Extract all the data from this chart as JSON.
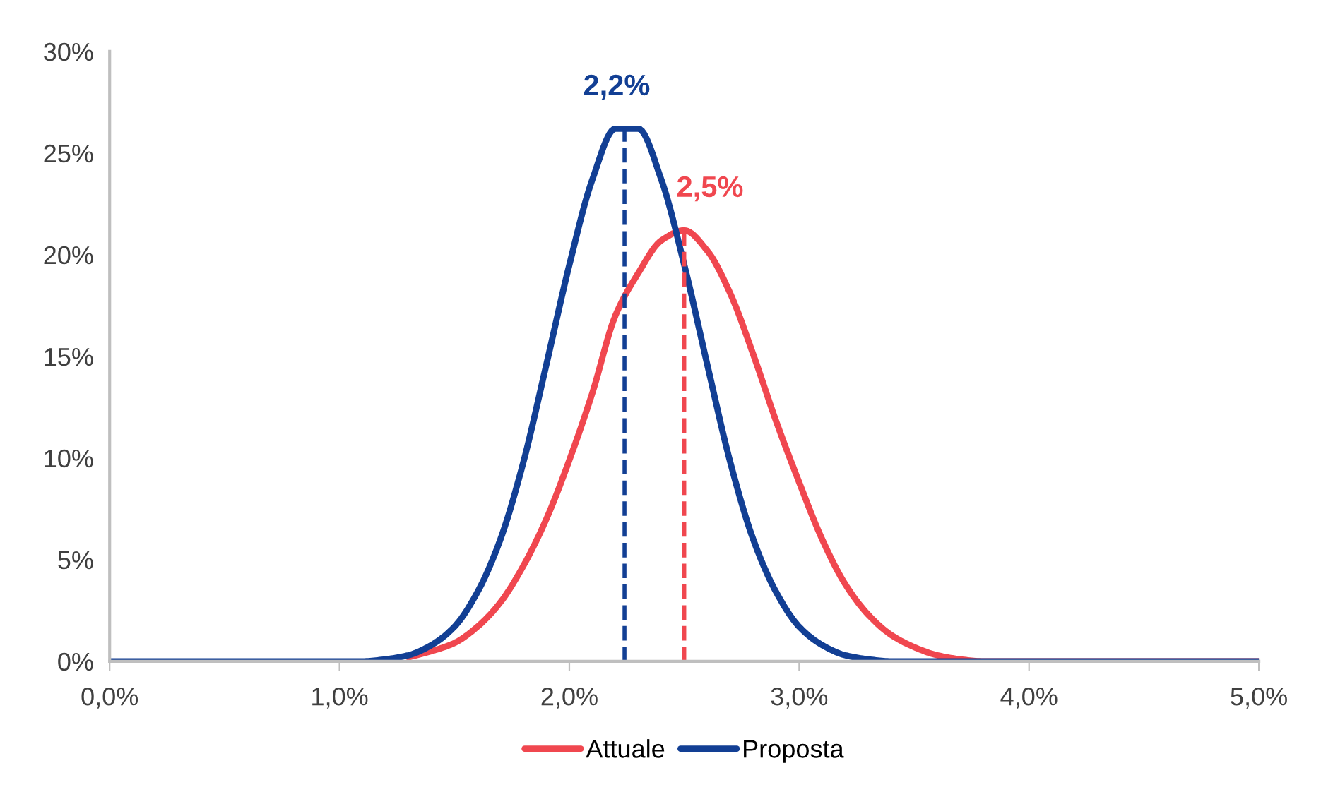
{
  "chart_data": {
    "type": "line",
    "x": [
      0.0,
      1.0,
      1.1,
      1.2,
      1.3,
      1.4,
      1.5,
      1.6,
      1.7,
      1.8,
      1.9,
      2.0,
      2.1,
      2.2,
      2.3,
      2.4,
      2.5,
      2.6,
      2.7,
      2.8,
      2.9,
      3.0,
      3.1,
      3.2,
      3.3,
      3.4,
      3.5,
      3.6,
      3.7,
      3.8,
      4.0,
      5.0
    ],
    "series": [
      {
        "name": "Attuale",
        "color": "#f0474f",
        "values": [
          null,
          null,
          null,
          null,
          0.2,
          0.5,
          0.9,
          1.7,
          2.9,
          4.7,
          7.0,
          9.9,
          13.2,
          17.0,
          19.1,
          20.7,
          21.2,
          20.2,
          18.1,
          15.1,
          11.8,
          8.8,
          6.0,
          3.8,
          2.3,
          1.3,
          0.7,
          0.3,
          0.1,
          0.0,
          0.0,
          0.0
        ]
      },
      {
        "name": "Proposta",
        "color": "#123f94",
        "values": [
          0.0,
          0.0,
          0.0,
          0.1,
          0.3,
          0.8,
          1.7,
          3.4,
          6.0,
          9.8,
          14.6,
          19.5,
          23.7,
          26.2,
          26.2,
          23.7,
          19.5,
          14.6,
          9.8,
          6.0,
          3.4,
          1.7,
          0.8,
          0.3,
          0.1,
          0.0,
          0.0,
          0.0,
          0.0,
          0.0,
          0.0,
          0.0
        ]
      }
    ],
    "xlim": [
      0,
      5
    ],
    "xticks": [
      {
        "value": 0,
        "label": "0,0%"
      },
      {
        "value": 1,
        "label": "1,0%"
      },
      {
        "value": 2,
        "label": "2,0%"
      },
      {
        "value": 3,
        "label": "3,0%"
      },
      {
        "value": 4,
        "label": "4,0%"
      },
      {
        "value": 5,
        "label": "5,0%"
      }
    ],
    "ylim": [
      0,
      30
    ],
    "yticks": [
      {
        "value": 0,
        "label": "0%"
      },
      {
        "value": 5,
        "label": "5%"
      },
      {
        "value": 10,
        "label": "10%"
      },
      {
        "value": 15,
        "label": "15%"
      },
      {
        "value": 20,
        "label": "20%"
      },
      {
        "value": 25,
        "label": "25%"
      },
      {
        "value": 30,
        "label": "30%"
      }
    ],
    "ref_lines": [
      {
        "axis": "x",
        "value": 2.24,
        "label": "2,2%",
        "color": "#123f94",
        "line_style": "dashed"
      },
      {
        "axis": "x",
        "value": 2.5,
        "label": "2,5%",
        "color": "#f0474f",
        "line_style": "dashed"
      }
    ],
    "grid": false,
    "legend": "bottom",
    "marker": "none",
    "line_style": "solid"
  }
}
